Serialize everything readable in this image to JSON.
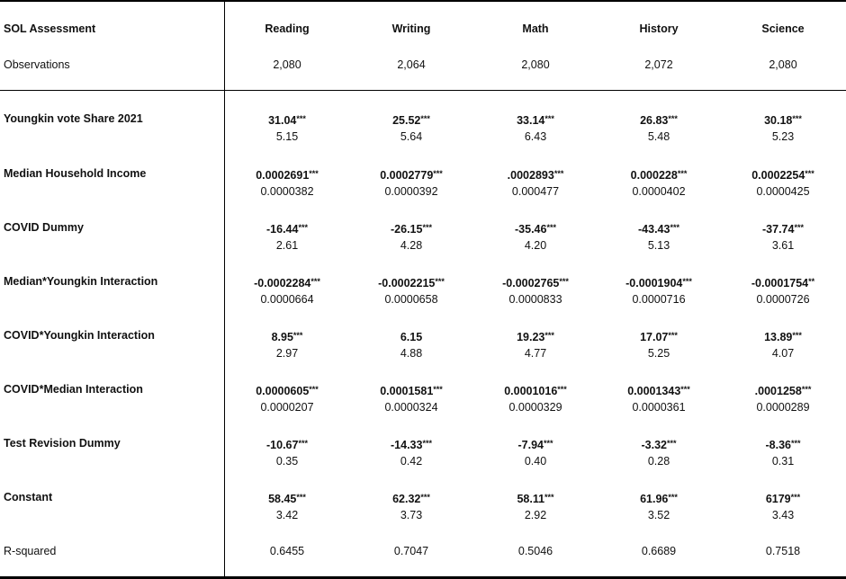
{
  "header": {
    "label": "SOL Assessment",
    "columns": [
      "Reading",
      "Writing",
      "Math",
      "History",
      "Science"
    ]
  },
  "observations": {
    "label": "Observations",
    "values": [
      "2,080",
      "2,064",
      "2,080",
      "2,072",
      "2,080"
    ]
  },
  "rows": [
    {
      "label": "Youngkin vote Share 2021",
      "coefs": [
        "31.04",
        "25.52",
        "33.14",
        "26.83",
        "30.18"
      ],
      "stars": [
        "***",
        "***",
        "***",
        "***",
        "***"
      ],
      "ses": [
        "5.15",
        "5.64",
        "6.43",
        "5.48",
        "5.23"
      ]
    },
    {
      "label": "Median Household Income",
      "coefs": [
        "0.0002691",
        "0.0002779",
        ".0002893",
        "0.000228",
        "0.0002254"
      ],
      "stars": [
        "***",
        "***",
        "***",
        "***",
        "***"
      ],
      "ses": [
        "0.0000382",
        "0.0000392",
        "0.000477",
        "0.0000402",
        "0.0000425"
      ]
    },
    {
      "label": "COVID Dummy",
      "coefs": [
        "-16.44",
        "-26.15",
        "-35.46",
        "-43.43",
        "-37.74"
      ],
      "stars": [
        "***",
        "***",
        "***",
        "***",
        "***"
      ],
      "ses": [
        "2.61",
        "4.28",
        "4.20",
        "5.13",
        "3.61"
      ]
    },
    {
      "label": "Median*Youngkin Interaction",
      "coefs": [
        "-0.0002284",
        "-0.0002215",
        "-0.0002765",
        "-0.0001904",
        "-0.0001754"
      ],
      "stars": [
        "***",
        "***",
        "***",
        "***",
        "**"
      ],
      "ses": [
        "0.0000664",
        "0.0000658",
        "0.0000833",
        "0.0000716",
        "0.0000726"
      ]
    },
    {
      "label": "COVID*Youngkin Interaction",
      "coefs": [
        "8.95",
        "6.15",
        "19.23",
        "17.07",
        "13.89"
      ],
      "stars": [
        "***",
        "",
        "***",
        "***",
        "***"
      ],
      "ses": [
        "2.97",
        "4.88",
        "4.77",
        "5.25",
        "4.07"
      ]
    },
    {
      "label": "COVID*Median Interaction",
      "coefs": [
        "0.0000605",
        "0.0001581",
        "0.0001016",
        "0.0001343",
        ".0001258"
      ],
      "stars": [
        "***",
        "***",
        "***",
        "***",
        "***"
      ],
      "ses": [
        "0.0000207",
        "0.0000324",
        "0.0000329",
        "0.0000361",
        "0.0000289"
      ]
    },
    {
      "label": "Test Revision Dummy",
      "coefs": [
        "-10.67",
        "-14.33",
        "-7.94",
        "-3.32",
        "-8.36"
      ],
      "stars": [
        "***",
        "***",
        "***",
        "***",
        "***"
      ],
      "ses": [
        "0.35",
        "0.42",
        "0.40",
        "0.28",
        "0.31"
      ]
    },
    {
      "label": "Constant",
      "coefs": [
        "58.45",
        "62.32",
        "58.11",
        "61.96",
        "6179"
      ],
      "stars": [
        "***",
        "***",
        "***",
        "***",
        "***"
      ],
      "ses": [
        "3.42",
        "3.73",
        "2.92",
        "3.52",
        "3.43"
      ]
    }
  ],
  "rsquared": {
    "label": "R-squared",
    "values": [
      "0.6455",
      "0.7047",
      "0.5046",
      "0.6689",
      "0.7518"
    ]
  }
}
